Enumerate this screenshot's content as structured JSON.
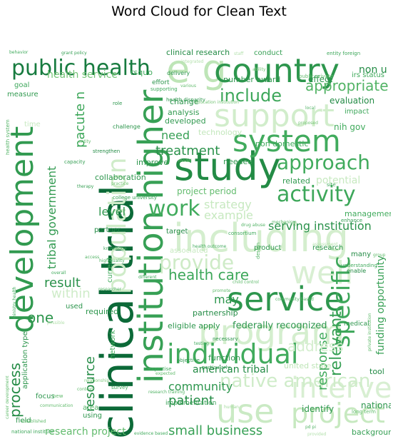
{
  "title": "Word Cloud for Clean Text",
  "chart_data": {
    "type": "wordcloud",
    "title": "Word Cloud for Clean Text",
    "colormap": "Greens",
    "background": "#ffffff",
    "words": [
      {
        "text": "clinical trial",
        "weight": 1.0
      },
      {
        "text": "study",
        "weight": 0.82
      },
      {
        "text": "including",
        "weight": 0.8
      },
      {
        "text": "e g",
        "weight": 0.78
      },
      {
        "text": "institution higher",
        "weight": 0.78
      },
      {
        "text": "service",
        "weight": 0.74
      },
      {
        "text": "country",
        "weight": 0.7
      },
      {
        "text": "system",
        "weight": 0.68
      },
      {
        "text": "support",
        "weight": 0.68
      },
      {
        "text": "program",
        "weight": 0.66
      },
      {
        "text": "development",
        "weight": 0.64
      },
      {
        "text": "individual",
        "weight": 0.62
      },
      {
        "text": "public health",
        "weight": 0.6
      },
      {
        "text": "population",
        "weight": 0.56
      },
      {
        "text": "use",
        "weight": 0.56
      },
      {
        "text": "project",
        "weight": 0.55
      },
      {
        "text": "activity",
        "weight": 0.54
      },
      {
        "text": "intervention",
        "weight": 0.52
      },
      {
        "text": "approach",
        "weight": 0.48
      },
      {
        "text": "provide",
        "weight": 0.46
      },
      {
        "text": "well",
        "weight": 0.46
      },
      {
        "text": "specific",
        "weight": 0.44
      },
      {
        "text": "native american",
        "weight": 0.42
      },
      {
        "text": "include",
        "weight": 0.4
      },
      {
        "text": "work",
        "weight": 0.4
      },
      {
        "text": "health care",
        "weight": 0.36
      },
      {
        "text": "appropriate",
        "weight": 0.34
      },
      {
        "text": "treatment",
        "weight": 0.32
      },
      {
        "text": "patient",
        "weight": 0.3
      },
      {
        "text": "small business",
        "weight": 0.3
      },
      {
        "text": "community",
        "weight": 0.3
      },
      {
        "text": "process",
        "weight": 0.3
      },
      {
        "text": "result",
        "weight": 0.3
      },
      {
        "text": "one",
        "weight": 0.3
      },
      {
        "text": "resource",
        "weight": 0.28
      },
      {
        "text": "relevant",
        "weight": 0.28
      },
      {
        "text": "response",
        "weight": 0.26
      },
      {
        "text": "address",
        "weight": 0.26
      },
      {
        "text": "need",
        "weight": 0.26
      },
      {
        "text": "tribal government",
        "weight": 0.24
      },
      {
        "text": "within",
        "weight": 0.24
      },
      {
        "text": "may",
        "weight": 0.24
      },
      {
        "text": "research project",
        "weight": 0.22
      },
      {
        "text": "pacute n",
        "weight": 0.22
      },
      {
        "text": "level",
        "weight": 0.22
      },
      {
        "text": "serving institution",
        "weight": 0.22
      },
      {
        "text": "federally recognized",
        "weight": 0.2
      },
      {
        "text": "american tribal",
        "weight": 0.2
      },
      {
        "text": "health service",
        "weight": 0.2
      },
      {
        "text": "example",
        "weight": 0.2
      },
      {
        "text": "strategy",
        "weight": 0.2
      },
      {
        "text": "project period",
        "weight": 0.18
      },
      {
        "text": "potential",
        "weight": 0.18
      },
      {
        "text": "funding opportunity",
        "weight": 0.18
      },
      {
        "text": "non u",
        "weight": 0.18
      },
      {
        "text": "number award",
        "weight": 0.16
      },
      {
        "text": "effect",
        "weight": 0.16
      },
      {
        "text": "nih gov",
        "weight": 0.16
      },
      {
        "text": "evaluation",
        "weight": 0.16
      },
      {
        "text": "management",
        "weight": 0.16
      },
      {
        "text": "national",
        "weight": 0.16
      },
      {
        "text": "identify",
        "weight": 0.16
      },
      {
        "text": "background",
        "weight": 0.16
      },
      {
        "text": "clinical research",
        "weight": 0.15
      },
      {
        "text": "eligible apply",
        "weight": 0.15
      },
      {
        "text": "partnership",
        "weight": 0.15
      },
      {
        "text": "function",
        "weight": 0.15
      },
      {
        "text": "united state",
        "weight": 0.15
      },
      {
        "text": "rsquo",
        "weight": 0.14
      },
      {
        "text": "developed",
        "weight": 0.14
      },
      {
        "text": "analysis",
        "weight": 0.14
      },
      {
        "text": "change",
        "weight": 0.14
      },
      {
        "text": "improve",
        "weight": 0.14
      },
      {
        "text": "collaboration",
        "weight": 0.14
      },
      {
        "text": "technology",
        "weight": 0.13
      },
      {
        "text": "needed",
        "weight": 0.13
      },
      {
        "text": "related",
        "weight": 0.13
      },
      {
        "text": "non domestic",
        "weight": 0.13
      },
      {
        "text": "research",
        "weight": 0.13
      },
      {
        "text": "product",
        "weight": 0.13
      },
      {
        "text": "many",
        "weight": 0.13
      },
      {
        "text": "tool",
        "weight": 0.13
      },
      {
        "text": "associated",
        "weight": 0.12
      },
      {
        "text": "partner",
        "weight": 0.12
      },
      {
        "text": "target",
        "weight": 0.12
      },
      {
        "text": "used",
        "weight": 0.12
      },
      {
        "text": "required",
        "weight": 0.12
      },
      {
        "text": "focus",
        "weight": 0.12
      },
      {
        "text": "field",
        "weight": 0.12
      },
      {
        "text": "using",
        "weight": 0.12
      },
      {
        "text": "area",
        "weight": 0.12
      },
      {
        "text": "implementation",
        "weight": 0.12
      },
      {
        "text": "application type",
        "weight": 0.12
      },
      {
        "text": "network",
        "weight": 0.12
      },
      {
        "text": "current",
        "weight": 0.11
      },
      {
        "text": "goal",
        "weight": 0.11
      },
      {
        "text": "measure",
        "weight": 0.11
      },
      {
        "text": "time",
        "weight": 0.11
      },
      {
        "text": "medical",
        "weight": 0.11
      },
      {
        "text": "enable",
        "weight": 0.1
      },
      {
        "text": "impact",
        "weight": 0.1
      },
      {
        "text": "irs status",
        "weight": 0.1
      },
      {
        "text": "conduct",
        "weight": 0.1
      },
      {
        "text": "delivery",
        "weight": 0.1
      },
      {
        "text": "effort",
        "weight": 0.1
      },
      {
        "text": "supporting",
        "weight": 0.09
      },
      {
        "text": "role",
        "weight": 0.09
      },
      {
        "text": "challenge",
        "weight": 0.09
      },
      {
        "text": "strengthen",
        "weight": 0.09
      },
      {
        "text": "capacity",
        "weight": 0.09
      },
      {
        "text": "health disparity",
        "weight": 0.09
      },
      {
        "text": "college university",
        "weight": 0.09
      },
      {
        "text": "consortium",
        "weight": 0.09
      },
      {
        "text": "understanding",
        "weight": 0.09
      },
      {
        "text": "site",
        "weight": 0.09
      },
      {
        "text": "enhance",
        "weight": 0.08
      },
      {
        "text": "survey",
        "weight": 0.08
      },
      {
        "text": "expertise",
        "weight": 0.08
      },
      {
        "text": "necessary",
        "weight": 0.08
      },
      {
        "text": "objective",
        "weight": 0.08
      },
      {
        "text": "particularly",
        "weight": 0.08
      },
      {
        "text": "national institute",
        "weight": 0.08
      },
      {
        "text": "new",
        "weight": 0.08
      },
      {
        "text": "long term",
        "weight": 0.08
      },
      {
        "text": "public private",
        "weight": 0.08
      },
      {
        "text": "entity foreign",
        "weight": 0.08
      },
      {
        "text": "grant policy",
        "weight": 0.07
      },
      {
        "text": "behavior",
        "weight": 0.07
      },
      {
        "text": "staff",
        "weight": 0.07
      },
      {
        "text": "integrated",
        "weight": 0.07
      },
      {
        "text": "various",
        "weight": 0.07
      },
      {
        "text": "knowledge",
        "weight": 0.07
      },
      {
        "text": "high quality",
        "weight": 0.07
      },
      {
        "text": "researcher",
        "weight": 0.07
      },
      {
        "text": "different",
        "weight": 0.07
      },
      {
        "text": "access",
        "weight": 0.07
      },
      {
        "text": "overall",
        "weight": 0.07
      },
      {
        "text": "possible",
        "weight": 0.07
      },
      {
        "text": "established",
        "weight": 0.07
      },
      {
        "text": "communication",
        "weight": 0.07
      },
      {
        "text": "evidence based",
        "weight": 0.07
      },
      {
        "text": "pd pi",
        "weight": 0.07
      },
      {
        "text": "provided",
        "weight": 0.07
      },
      {
        "text": "group",
        "weight": 0.07
      },
      {
        "text": "local",
        "weight": 0.07
      },
      {
        "text": "proposed",
        "weight": 0.07
      },
      {
        "text": "therapy",
        "weight": 0.06
      },
      {
        "text": "testing",
        "weight": 0.06
      },
      {
        "text": "expected",
        "weight": 0.06
      },
      {
        "text": "promote",
        "weight": 0.06
      },
      {
        "text": "health outcome",
        "weight": 0.06
      },
      {
        "text": "child control",
        "weight": 0.06
      },
      {
        "text": "community based",
        "weight": 0.06
      },
      {
        "text": "mechanism",
        "weight": 0.06
      },
      {
        "text": "drug abuse",
        "weight": 0.06
      },
      {
        "text": "ministry health",
        "weight": 0.06
      },
      {
        "text": "career development",
        "weight": 0.06
      },
      {
        "text": "private institution",
        "weight": 0.06
      },
      {
        "text": "design",
        "weight": 0.06
      },
      {
        "text": "health system",
        "weight": 0.06
      },
      {
        "text": "research training",
        "weight": 0.06
      },
      {
        "text": "context",
        "weight": 0.06
      },
      {
        "text": "practice",
        "weight": 0.05
      },
      {
        "text": "ability",
        "weight": 0.05
      },
      {
        "text": "model",
        "weight": 0.05
      },
      {
        "text": "entity",
        "weight": 0.05
      },
      {
        "text": "relationship",
        "weight": 0.05
      },
      {
        "text": "assessment",
        "weight": 0.05
      },
      {
        "text": "education institution",
        "weight": 0.05
      },
      {
        "text": "human",
        "weight": 0.05
      }
    ]
  }
}
